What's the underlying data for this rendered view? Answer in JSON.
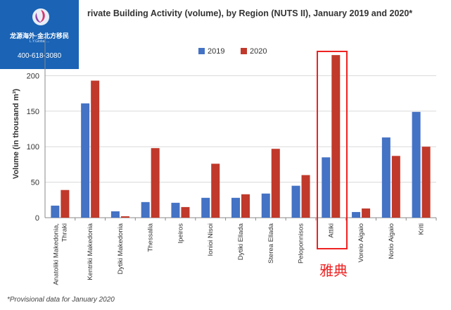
{
  "logo": {
    "name": "龙源海外·金北方移民",
    "sub": "L.Y.Global ...",
    "phone": "400-618-3080"
  },
  "chart_data": {
    "type": "bar",
    "title": "rivate Building Activity (volume), by Region (NUTS II), January 2019 and 2020*",
    "ylabel": "Volume (in thousand m³)",
    "xlabel": "",
    "ylim": [
      0,
      250
    ],
    "yticks": [
      0,
      50,
      100,
      150,
      200
    ],
    "grid": true,
    "legend": "top-center",
    "categories": [
      "Anatoliki Makedonia, Thraki",
      "Kentriki Makedonia",
      "Dytiki Makedonia",
      "Thessalia",
      "Ipeiros",
      "Ionioi Nisoi",
      "Dytiki Ellada",
      "Sterea Ellada",
      "Peloponnisos",
      "Attiki",
      "Voreio Aigaio",
      "Notio Aigaio",
      "Kriti"
    ],
    "series": [
      {
        "name": "2019",
        "color": "#4472c4",
        "values": [
          17,
          161,
          9,
          22,
          21,
          28,
          28,
          34,
          45,
          85,
          8,
          113,
          149
        ]
      },
      {
        "name": "2020",
        "color": "#c0392b",
        "values": [
          39,
          193,
          2,
          98,
          15,
          76,
          33,
          97,
          60,
          229,
          13,
          87,
          100
        ]
      }
    ],
    "footnote": "*Provisional data for January 2020",
    "annotation": {
      "label": "雅典",
      "category": "Attiki",
      "color": "#ee2222"
    }
  }
}
